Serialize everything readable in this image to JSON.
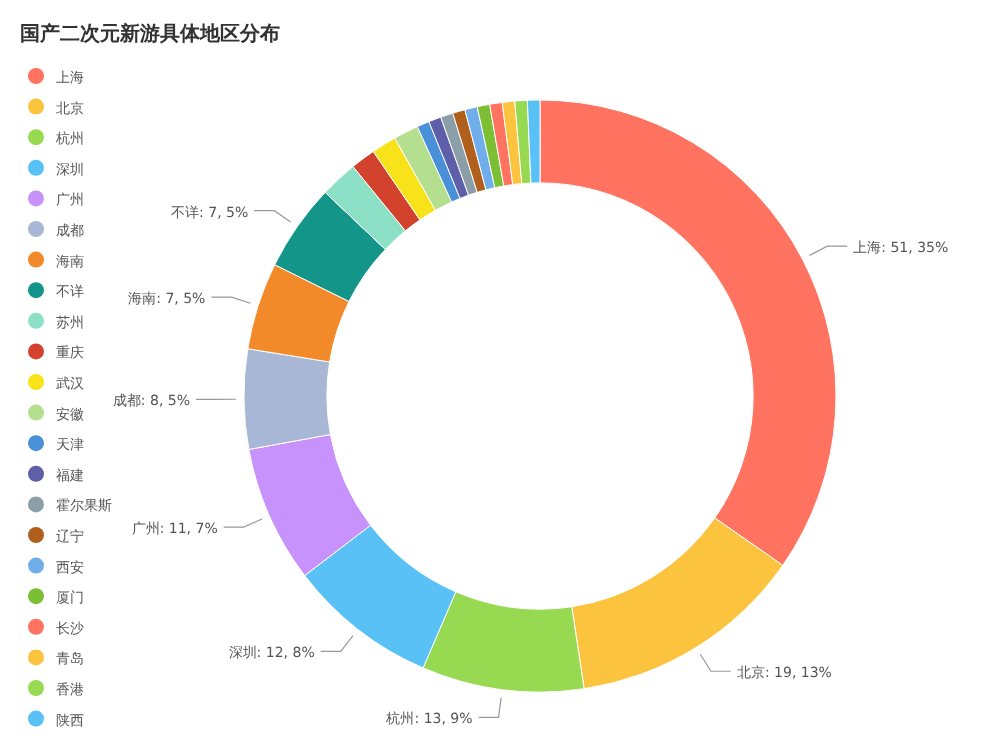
{
  "chart_data": {
    "type": "donut",
    "title": "国产二次元新游具体地区分布",
    "legend": "left",
    "categories": [
      "上海",
      "北京",
      "杭州",
      "深圳",
      "广州",
      "成都",
      "海南",
      "不详",
      "苏州",
      "重庆",
      "武汉",
      "安徽",
      "天津",
      "福建",
      "霍尔果斯",
      "辽宁",
      "西安",
      "厦门",
      "长沙",
      "青岛",
      "香港",
      "陕西"
    ],
    "values": [
      51,
      19,
      13,
      12,
      11,
      8,
      7,
      7,
      3,
      2,
      2,
      2,
      1,
      1,
      1,
      1,
      1,
      1,
      1,
      1,
      1,
      1
    ],
    "value_labels": [
      "上海: 51, 35%",
      "北京: 19, 13%",
      "杭州: 13, 9%",
      "深圳: 12, 8%",
      "广州: 11, 7%",
      "成都: 8, 5%",
      "海南: 7, 5%",
      "不详: 7, 5%",
      null,
      null,
      null,
      null,
      null,
      null,
      null,
      null,
      null,
      null,
      null,
      null,
      null,
      null
    ],
    "colors": [
      "#ff7360",
      "#fcc43e",
      "#98d952",
      "#5ac1f7",
      "#c792fb",
      "#a9b7d6",
      "#f28a2a",
      "#14958a",
      "#8ce0c6",
      "#d3422c",
      "#f8e21a",
      "#b4df8f",
      "#4a90d9",
      "#5d5fa8",
      "#8c9ea8",
      "#b05f1c",
      "#6faeea",
      "#7cbf34",
      "#ff7360",
      "#fcc43e",
      "#98d952",
      "#5ac1f7"
    ]
  }
}
